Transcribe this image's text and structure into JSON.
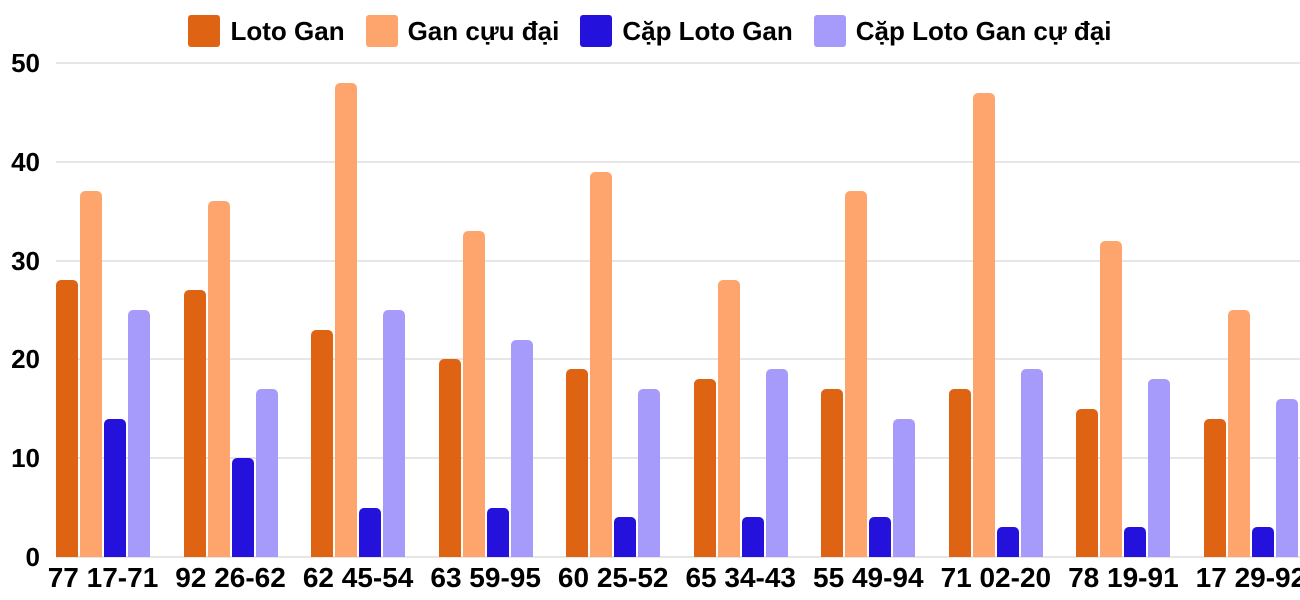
{
  "chart_data": {
    "type": "bar",
    "title": "",
    "xlabel": "",
    "ylabel": "",
    "ylim": [
      0,
      50
    ],
    "yticks": [
      0,
      10,
      20,
      30,
      40,
      50
    ],
    "grid": true,
    "legend_position": "top-center",
    "categories": [
      "77 17-71",
      "92 26-62",
      "62 45-54",
      "63 59-95",
      "60 25-52",
      "65 34-43",
      "55 49-94",
      "71 02-20",
      "78 19-91",
      "17 29-92"
    ],
    "series": [
      {
        "key": "loto-gan",
        "name": "Loto Gan",
        "color": "#de6313",
        "values": [
          28,
          27,
          23,
          20,
          19,
          18,
          17,
          17,
          15,
          14
        ]
      },
      {
        "key": "gan-cuu-dai",
        "name": "Gan cựu đại",
        "color": "#fda56c",
        "values": [
          37,
          36,
          48,
          33,
          39,
          28,
          37,
          47,
          32,
          25
        ]
      },
      {
        "key": "cap-loto-gan",
        "name": "Cặp Loto Gan",
        "color": "#2412dc",
        "values": [
          14,
          10,
          5,
          5,
          4,
          4,
          4,
          3,
          3,
          3
        ]
      },
      {
        "key": "cap-loto-gan-cu-dai",
        "name": "Cặp Loto Gan cự đại",
        "color": "#a69bfa",
        "values": [
          25,
          17,
          25,
          22,
          17,
          19,
          14,
          19,
          18,
          16
        ]
      }
    ]
  },
  "colors": {
    "background": "#ffffff",
    "gridline": "#e6e6e6",
    "text": "#000000"
  }
}
